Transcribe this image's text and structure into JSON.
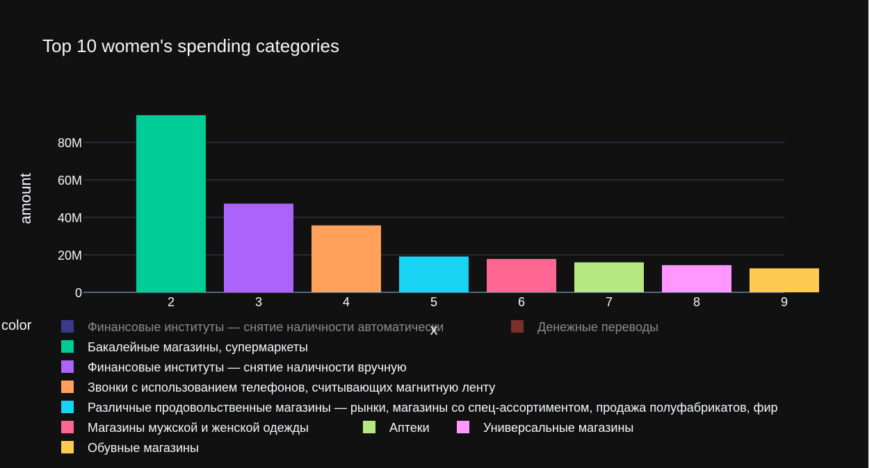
{
  "chart_data": {
    "type": "bar",
    "title": "Top 10 women's spending categories",
    "xlabel": "x",
    "ylabel": "amount",
    "x": [
      2,
      3,
      4,
      5,
      6,
      7,
      8,
      9
    ],
    "y_ticks": [
      "0",
      "20M",
      "40M",
      "60M",
      "80M"
    ],
    "ylim": [
      0,
      100000000
    ],
    "legend_title": "color",
    "legend_position": "bottom",
    "grid": true,
    "series": [
      {
        "name": "Финансовые институты — снятие наличности автоматически",
        "color": "#3b3b8a",
        "visible": false,
        "x": [],
        "values": []
      },
      {
        "name": "Денежные переводы",
        "color": "#7a3028",
        "visible": false,
        "x": [],
        "values": []
      },
      {
        "name": "Бакалейные магазины, супермаркеты",
        "color": "#00cc96",
        "visible": true,
        "x": [
          2
        ],
        "values": [
          94500000
        ]
      },
      {
        "name": "Финансовые институты — снятие наличности вручную",
        "color": "#ab63fa",
        "visible": true,
        "x": [
          3
        ],
        "values": [
          47300000
        ]
      },
      {
        "name": "Звонки с использованием телефонов, считывающих магнитную ленту",
        "color": "#ffa15a",
        "visible": true,
        "x": [
          4
        ],
        "values": [
          35700000
        ]
      },
      {
        "name": "Различные продовольственные магазины — рынки, магазины со спец-ассортиментом, продажа полуфабрикатов, фир",
        "color": "#19d3f3",
        "visible": true,
        "x": [
          5
        ],
        "values": [
          19100000
        ]
      },
      {
        "name": "Магазины мужской и женской одежды",
        "color": "#ff6692",
        "visible": true,
        "x": [
          6
        ],
        "values": [
          17800000
        ]
      },
      {
        "name": "Аптеки",
        "color": "#b6e880",
        "visible": true,
        "x": [
          7
        ],
        "values": [
          16000000
        ]
      },
      {
        "name": "Универсальные магазины",
        "color": "#ff97ff",
        "visible": true,
        "x": [
          8
        ],
        "values": [
          14500000
        ]
      },
      {
        "name": "Обувные магазины",
        "color": "#fecb52",
        "visible": true,
        "x": [
          9
        ],
        "values": [
          12800000
        ]
      }
    ]
  }
}
